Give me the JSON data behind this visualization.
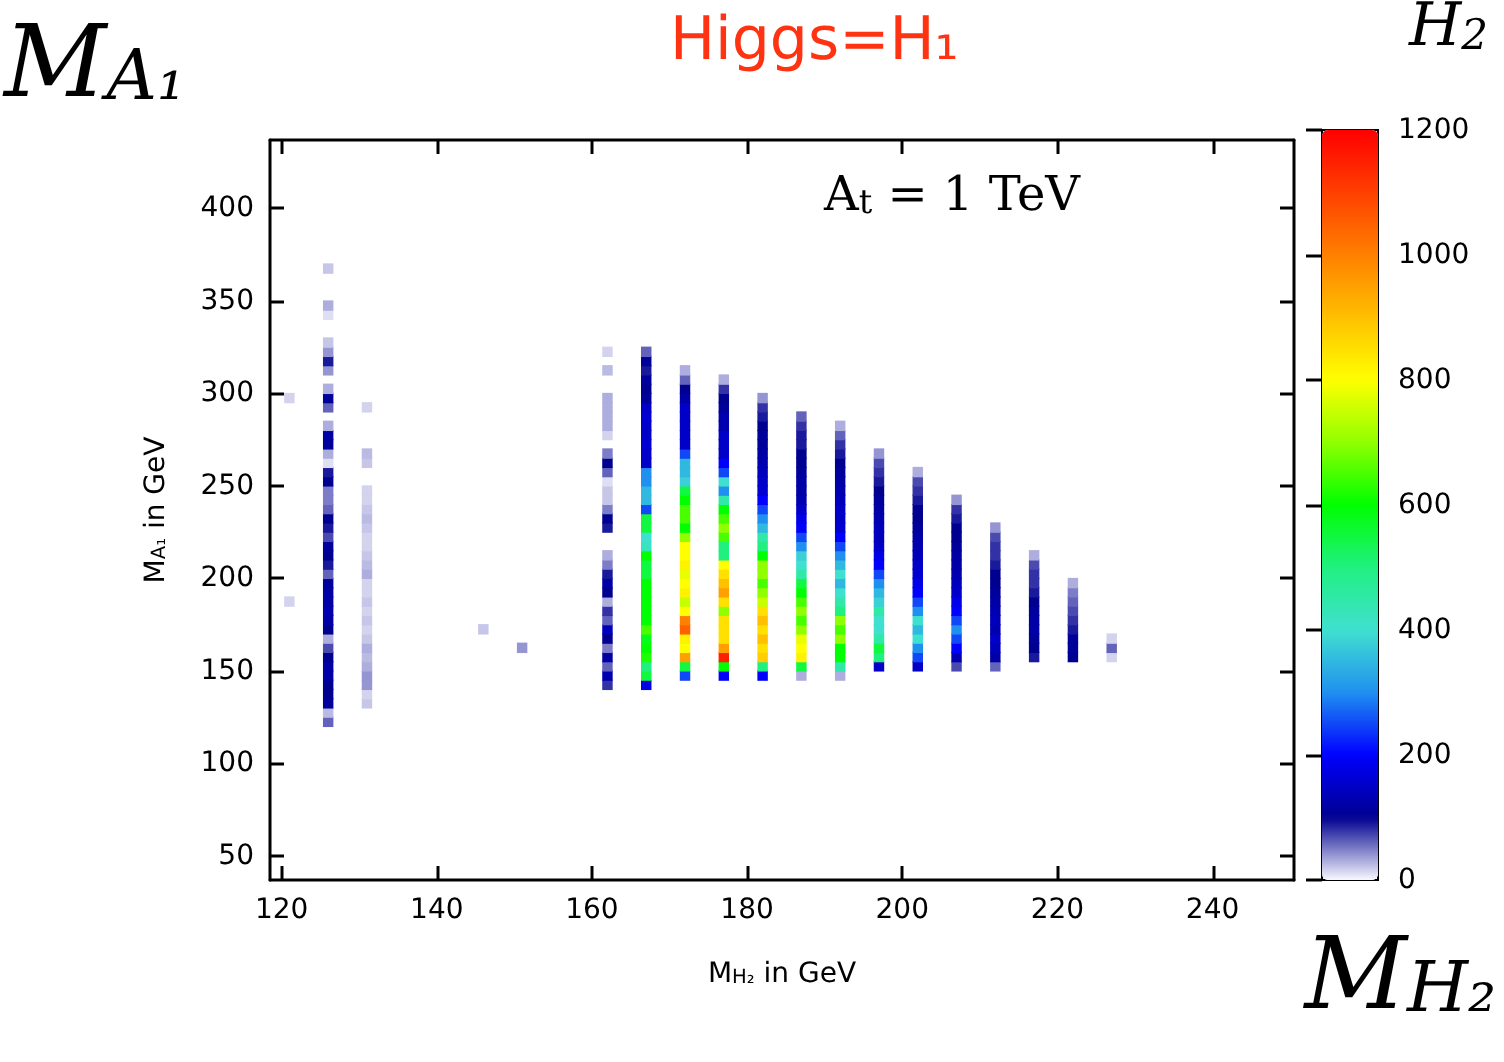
{
  "chart_data": {
    "type": "scatter",
    "title": "Higgs=H₁",
    "xlabel": "M$_{H₂}$ in GeV",
    "ylabel": "M$_{A₁}$ in GeV",
    "annotations": [
      "A$_{t}$ = 1 TeV",
      "M$_{A₁}$",
      "M$_{H₂}$",
      "H$_{2}$"
    ],
    "marker": "square",
    "xlim": [
      118.5,
      250.5
    ],
    "ylim": [
      37,
      437
    ],
    "xticks": [
      120,
      140,
      160,
      180,
      200,
      220,
      240
    ],
    "yticks": [
      50,
      100,
      150,
      200,
      250,
      300,
      350,
      400
    ],
    "clim": [
      0,
      1200
    ],
    "cticks": [
      0,
      200,
      400,
      600,
      800,
      1000,
      1200
    ],
    "x": [
      121,
      121,
      126,
      126,
      126,
      126,
      126,
      126,
      126,
      126,
      126,
      126,
      126,
      126,
      126,
      126,
      126,
      126,
      126,
      126,
      126,
      126,
      126,
      126,
      126,
      126,
      126,
      126,
      126,
      126,
      126,
      126,
      126,
      126,
      126,
      126,
      126,
      126,
      126,
      126,
      126,
      126,
      126,
      126,
      126,
      131,
      131,
      131,
      131,
      131,
      131,
      131,
      131,
      131,
      131,
      131,
      131,
      131,
      131,
      131,
      131,
      131,
      131,
      131,
      131,
      131,
      131,
      131,
      131,
      131,
      131,
      131,
      146,
      151,
      162,
      162,
      162,
      162,
      162,
      162,
      162,
      162,
      162,
      162,
      162,
      162,
      162,
      162,
      162,
      162,
      162,
      162,
      162,
      162,
      162,
      162,
      162,
      162,
      162,
      162,
      162,
      162,
      162,
      162,
      162,
      167,
      167,
      167,
      167,
      167,
      167,
      167,
      167,
      167,
      167,
      167,
      167,
      167,
      167,
      167,
      167,
      167,
      167,
      167,
      167,
      167,
      167,
      167,
      167,
      167,
      167,
      167,
      167,
      167,
      167,
      167,
      167,
      167,
      167,
      167,
      167,
      167,
      172,
      172,
      172,
      172,
      172,
      172,
      172,
      172,
      172,
      172,
      172,
      172,
      172,
      172,
      172,
      172,
      172,
      172,
      172,
      172,
      172,
      172,
      172,
      172,
      172,
      172,
      172,
      172,
      172,
      172,
      172,
      172,
      172,
      172,
      177,
      177,
      177,
      177,
      177,
      177,
      177,
      177,
      177,
      177,
      177,
      177,
      177,
      177,
      177,
      177,
      177,
      177,
      177,
      177,
      177,
      177,
      177,
      177,
      177,
      177,
      177,
      177,
      177,
      177,
      177,
      177,
      177,
      182,
      182,
      182,
      182,
      182,
      182,
      182,
      182,
      182,
      182,
      182,
      182,
      182,
      182,
      182,
      182,
      182,
      182,
      182,
      182,
      182,
      182,
      182,
      182,
      182,
      182,
      182,
      182,
      182,
      182,
      182,
      187,
      187,
      187,
      187,
      187,
      187,
      187,
      187,
      187,
      187,
      187,
      187,
      187,
      187,
      187,
      187,
      187,
      187,
      187,
      187,
      187,
      187,
      187,
      187,
      187,
      187,
      187,
      187,
      187,
      192,
      192,
      192,
      192,
      192,
      192,
      192,
      192,
      192,
      192,
      192,
      192,
      192,
      192,
      192,
      192,
      192,
      192,
      192,
      192,
      192,
      192,
      192,
      192,
      192,
      192,
      192,
      192,
      197,
      197,
      197,
      197,
      197,
      197,
      197,
      197,
      197,
      197,
      197,
      197,
      197,
      197,
      197,
      197,
      197,
      197,
      197,
      197,
      197,
      197,
      197,
      197,
      202,
      202,
      202,
      202,
      202,
      202,
      202,
      202,
      202,
      202,
      202,
      202,
      202,
      202,
      202,
      202,
      202,
      202,
      202,
      202,
      202,
      202,
      207,
      207,
      207,
      207,
      207,
      207,
      207,
      207,
      207,
      207,
      207,
      207,
      207,
      207,
      207,
      207,
      207,
      207,
      207,
      212,
      212,
      212,
      212,
      212,
      212,
      212,
      212,
      212,
      212,
      212,
      212,
      212,
      212,
      212,
      212,
      217,
      217,
      217,
      217,
      217,
      217,
      217,
      217,
      217,
      217,
      217,
      217,
      222,
      222,
      222,
      222,
      222,
      222,
      222,
      222,
      222,
      227,
      227,
      227
    ],
    "values": [
      187.5,
      297.5,
      122.5,
      127.5,
      132.5,
      137.5,
      142.5,
      147.5,
      152.5,
      157.5,
      162.5,
      167.5,
      172.5,
      177.5,
      182.5,
      187.5,
      192.5,
      197.5,
      202.5,
      207.5,
      212.5,
      217.5,
      222.5,
      227.5,
      232.5,
      237.5,
      242.5,
      247.5,
      252.5,
      257.5,
      262.5,
      267.5,
      272.5,
      277.5,
      282.5,
      292.5,
      297.5,
      302.5,
      312.5,
      317.5,
      322.5,
      327.5,
      342.5,
      347.5,
      367.5,
      132.5,
      137.5,
      142.5,
      147.5,
      152.5,
      157.5,
      162.5,
      167.5,
      172.5,
      177.5,
      182.5,
      187.5,
      192.5,
      197.5,
      202.5,
      207.5,
      212.5,
      217.5,
      222.5,
      227.5,
      232.5,
      237.5,
      242.5,
      247.5,
      262.5,
      267.5,
      292.5,
      172.5,
      162.5,
      142.5,
      147.5,
      152.5,
      157.5,
      162.5,
      167.5,
      172.5,
      177.5,
      182.5,
      187.5,
      192.5,
      197.5,
      202.5,
      207.5,
      212.5,
      227.5,
      232.5,
      237.5,
      242.5,
      247.5,
      252.5,
      257.5,
      262.5,
      267.5,
      277.5,
      282.5,
      287.5,
      292.5,
      297.5,
      312.5,
      322.5,
      142.5,
      147.5,
      152.5,
      157.5,
      162.5,
      167.5,
      172.5,
      177.5,
      182.5,
      187.5,
      192.5,
      197.5,
      202.5,
      207.5,
      212.5,
      217.5,
      222.5,
      227.5,
      232.5,
      237.5,
      242.5,
      247.5,
      252.5,
      257.5,
      262.5,
      267.5,
      272.5,
      277.5,
      282.5,
      287.5,
      292.5,
      297.5,
      302.5,
      307.5,
      312.5,
      317.5,
      322.5,
      147.5,
      152.5,
      157.5,
      162.5,
      167.5,
      172.5,
      177.5,
      182.5,
      187.5,
      192.5,
      197.5,
      202.5,
      207.5,
      212.5,
      217.5,
      222.5,
      227.5,
      232.5,
      237.5,
      242.5,
      247.5,
      252.5,
      257.5,
      262.5,
      267.5,
      272.5,
      277.5,
      282.5,
      287.5,
      292.5,
      297.5,
      302.5,
      307.5,
      312.5,
      147.5,
      152.5,
      157.5,
      162.5,
      167.5,
      172.5,
      177.5,
      182.5,
      187.5,
      192.5,
      197.5,
      202.5,
      207.5,
      212.5,
      217.5,
      222.5,
      227.5,
      232.5,
      237.5,
      242.5,
      247.5,
      252.5,
      257.5,
      262.5,
      267.5,
      272.5,
      277.5,
      282.5,
      287.5,
      292.5,
      297.5,
      302.5,
      307.5,
      147.5,
      152.5,
      157.5,
      162.5,
      167.5,
      172.5,
      177.5,
      182.5,
      187.5,
      192.5,
      197.5,
      202.5,
      207.5,
      212.5,
      217.5,
      222.5,
      227.5,
      232.5,
      237.5,
      242.5,
      247.5,
      252.5,
      257.5,
      262.5,
      267.5,
      272.5,
      277.5,
      282.5,
      287.5,
      292.5,
      297.5,
      147.5,
      152.5,
      157.5,
      162.5,
      167.5,
      172.5,
      177.5,
      182.5,
      187.5,
      192.5,
      197.5,
      202.5,
      207.5,
      212.5,
      217.5,
      222.5,
      227.5,
      232.5,
      237.5,
      242.5,
      247.5,
      252.5,
      257.5,
      262.5,
      267.5,
      272.5,
      277.5,
      282.5,
      287.5,
      147.5,
      152.5,
      157.5,
      162.5,
      167.5,
      172.5,
      177.5,
      182.5,
      187.5,
      192.5,
      197.5,
      202.5,
      207.5,
      212.5,
      217.5,
      222.5,
      227.5,
      232.5,
      237.5,
      242.5,
      247.5,
      252.5,
      257.5,
      262.5,
      267.5,
      272.5,
      277.5,
      282.5,
      152.5,
      157.5,
      162.5,
      167.5,
      172.5,
      177.5,
      182.5,
      187.5,
      192.5,
      197.5,
      202.5,
      207.5,
      212.5,
      217.5,
      222.5,
      227.5,
      232.5,
      237.5,
      242.5,
      247.5,
      252.5,
      257.5,
      262.5,
      267.5,
      152.5,
      157.5,
      162.5,
      167.5,
      172.5,
      177.5,
      182.5,
      187.5,
      192.5,
      197.5,
      202.5,
      207.5,
      212.5,
      217.5,
      222.5,
      227.5,
      232.5,
      237.5,
      242.5,
      247.5,
      252.5,
      257.5,
      152.5,
      157.5,
      162.5,
      167.5,
      172.5,
      177.5,
      182.5,
      187.5,
      192.5,
      197.5,
      202.5,
      207.5,
      212.5,
      217.5,
      222.5,
      227.5,
      232.5,
      237.5,
      242.5,
      152.5,
      157.5,
      162.5,
      167.5,
      172.5,
      177.5,
      182.5,
      187.5,
      192.5,
      197.5,
      202.5,
      207.5,
      212.5,
      217.5,
      222.5,
      227.5,
      157.5,
      162.5,
      167.5,
      172.5,
      177.5,
      182.5,
      187.5,
      192.5,
      197.5,
      202.5,
      207.5,
      212.5,
      157.5,
      162.5,
      167.5,
      172.5,
      177.5,
      182.5,
      187.5,
      192.5,
      197.5,
      157.5,
      162.5,
      167.5
    ],
    "cvalues": [
      15,
      15,
      60,
      25,
      110,
      100,
      100,
      120,
      120,
      100,
      70,
      30,
      100,
      120,
      130,
      120,
      120,
      110,
      60,
      90,
      100,
      110,
      70,
      90,
      100,
      60,
      50,
      50,
      100,
      90,
      10,
      30,
      110,
      120,
      30,
      60,
      110,
      30,
      40,
      90,
      40,
      20,
      10,
      30,
      20,
      20,
      15,
      40,
      40,
      30,
      25,
      30,
      20,
      15,
      20,
      15,
      20,
      15,
      15,
      30,
      25,
      20,
      15,
      15,
      20,
      25,
      20,
      15,
      15,
      20,
      25,
      15,
      20,
      40,
      80,
      130,
      60,
      120,
      50,
      100,
      140,
      60,
      80,
      30,
      100,
      120,
      90,
      50,
      30,
      90,
      100,
      50,
      20,
      20,
      10,
      60,
      100,
      50,
      15,
      30,
      30,
      30,
      30,
      25,
      15,
      180,
      550,
      500,
      620,
      600,
      580,
      650,
      600,
      600,
      600,
      600,
      600,
      550,
      550,
      600,
      420,
      400,
      550,
      550,
      250,
      350,
      350,
      300,
      300,
      150,
      150,
      160,
      150,
      150,
      160,
      150,
      110,
      100,
      110,
      90,
      110,
      60,
      250,
      550,
      950,
      800,
      820,
      1050,
      1000,
      800,
      750,
      820,
      800,
      780,
      820,
      800,
      800,
      700,
      600,
      650,
      650,
      600,
      550,
      380,
      350,
      350,
      250,
      150,
      150,
      150,
      150,
      150,
      120,
      100,
      60,
      30,
      200,
      600,
      1150,
      950,
      850,
      850,
      850,
      700,
      850,
      950,
      900,
      850,
      800,
      500,
      500,
      650,
      700,
      650,
      600,
      450,
      300,
      400,
      250,
      200,
      150,
      150,
      150,
      130,
      130,
      110,
      100,
      80,
      30,
      200,
      500,
      880,
      850,
      900,
      850,
      900,
      850,
      750,
      700,
      650,
      700,
      700,
      600,
      500,
      450,
      350,
      300,
      250,
      200,
      160,
      150,
      140,
      130,
      120,
      110,
      110,
      100,
      90,
      80,
      40,
      30,
      550,
      820,
      800,
      780,
      700,
      650,
      700,
      650,
      600,
      550,
      450,
      400,
      380,
      300,
      250,
      200,
      180,
      150,
      130,
      120,
      120,
      110,
      100,
      100,
      90,
      90,
      80,
      60,
      30,
      450,
      600,
      600,
      700,
      650,
      700,
      500,
      450,
      400,
      350,
      400,
      350,
      300,
      250,
      200,
      160,
      150,
      150,
      140,
      130,
      120,
      110,
      100,
      90,
      80,
      60,
      30,
      150,
      500,
      550,
      450,
      400,
      400,
      450,
      380,
      350,
      300,
      250,
      200,
      180,
      150,
      140,
      140,
      130,
      120,
      110,
      100,
      90,
      80,
      70,
      40,
      150,
      250,
      300,
      400,
      350,
      400,
      300,
      250,
      200,
      180,
      160,
      150,
      140,
      130,
      120,
      110,
      100,
      100,
      90,
      80,
      70,
      30,
      70,
      130,
      200,
      250,
      300,
      250,
      200,
      180,
      150,
      140,
      130,
      120,
      120,
      110,
      100,
      100,
      90,
      80,
      40,
      60,
      120,
      140,
      150,
      130,
      140,
      130,
      120,
      110,
      100,
      100,
      90,
      80,
      80,
      70,
      40,
      90,
      100,
      110,
      120,
      120,
      110,
      100,
      90,
      80,
      80,
      70,
      30,
      100,
      110,
      110,
      90,
      80,
      70,
      60,
      50,
      30,
      15,
      60,
      15
    ]
  }
}
